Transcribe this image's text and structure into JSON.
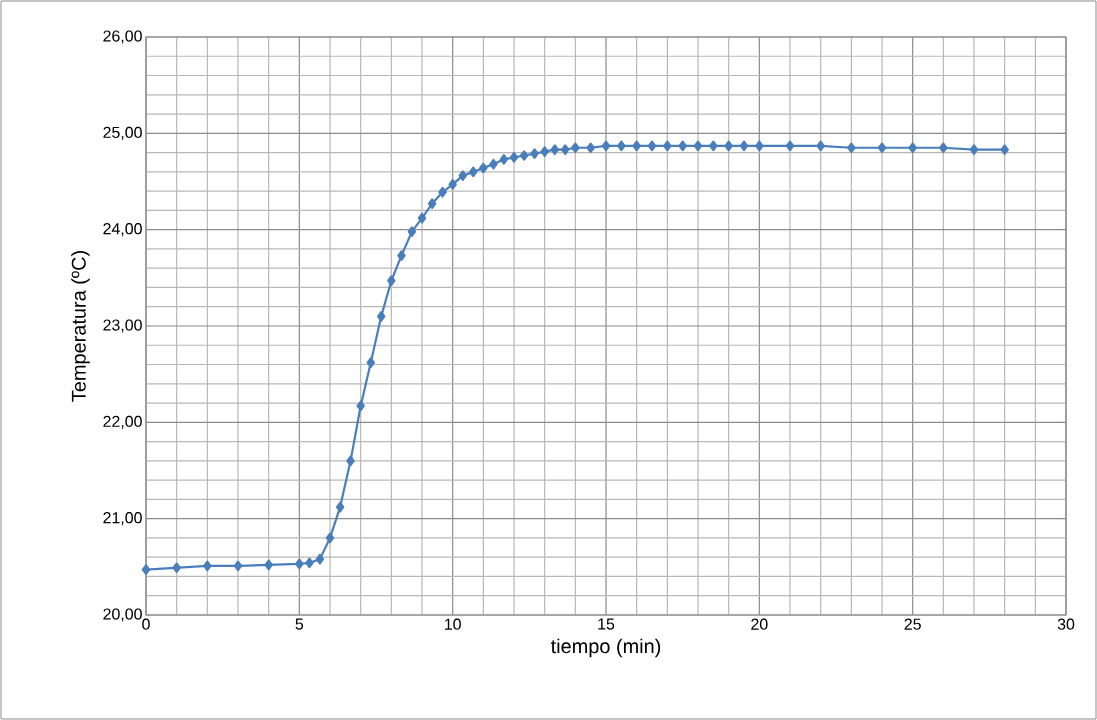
{
  "chart_data": {
    "type": "line",
    "xlabel": "tiempo (min)",
    "ylabel": "Temperatura (ºC)",
    "x": [
      0,
      1,
      2,
      3,
      4,
      5,
      5.33,
      5.67,
      6,
      6.33,
      6.67,
      7,
      7.33,
      7.67,
      8,
      8.33,
      8.67,
      9,
      9.33,
      9.67,
      10,
      10.33,
      10.67,
      11,
      11.33,
      11.67,
      12,
      12.33,
      12.67,
      13,
      13.33,
      13.67,
      14,
      14.5,
      15,
      15.5,
      16,
      16.5,
      17,
      17.5,
      18,
      18.5,
      19,
      19.5,
      20,
      21,
      22,
      23,
      24,
      25,
      26,
      27,
      28
    ],
    "values": [
      20.47,
      20.49,
      20.51,
      20.51,
      20.52,
      20.53,
      20.54,
      20.58,
      20.8,
      21.12,
      21.6,
      22.17,
      22.62,
      23.1,
      23.47,
      23.73,
      23.98,
      24.12,
      24.27,
      24.39,
      24.47,
      24.56,
      24.6,
      24.64,
      24.68,
      24.73,
      24.75,
      24.77,
      24.79,
      24.81,
      24.83,
      24.83,
      24.85,
      24.85,
      24.87,
      24.87,
      24.87,
      24.87,
      24.87,
      24.87,
      24.87,
      24.87,
      24.87,
      24.87,
      24.87,
      24.87,
      24.87,
      24.85,
      24.85,
      24.85,
      24.85,
      24.83,
      24.83
    ],
    "color": "#4a7ebb",
    "marker": "diamond",
    "line_style": "solid",
    "grid": true,
    "xlim": [
      0,
      30
    ],
    "xticks": [
      0,
      5,
      10,
      15,
      20,
      25,
      30
    ],
    "ylim": [
      20,
      26
    ],
    "yticks": [
      {
        "value": 20,
        "label": "20,00"
      },
      {
        "value": 21,
        "label": "21,00"
      },
      {
        "value": 22,
        "label": "22,00"
      },
      {
        "value": 23,
        "label": "23,00"
      },
      {
        "value": 24,
        "label": "24,00"
      },
      {
        "value": 25,
        "label": "25,00"
      },
      {
        "value": 26,
        "label": "26,00"
      }
    ]
  }
}
